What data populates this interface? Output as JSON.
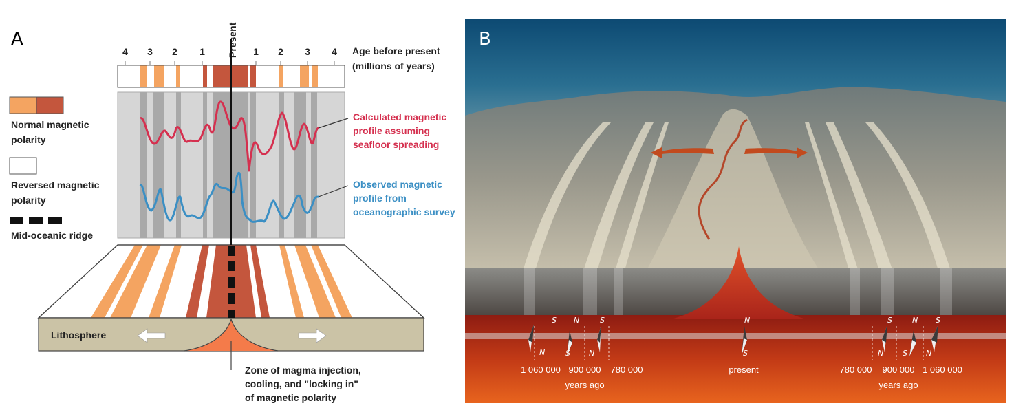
{
  "panel_a": {
    "letter": "A",
    "present_label": "Present",
    "age_ticks_left": [
      "4",
      "3",
      "2",
      "1"
    ],
    "age_ticks_right": [
      "1",
      "2",
      "3",
      "4"
    ],
    "age_title_line1": "Age before present",
    "age_title_line2": "(millions of years)",
    "legend": {
      "normal_line1": "Normal magnetic",
      "normal_line2": "polarity",
      "reversed_line1": "Reversed magnetic",
      "reversed_line2": "polarity",
      "ridge": "Mid-oceanic ridge"
    },
    "calculated_line1": "Calculated magnetic",
    "calculated_line2": "profile assuming",
    "calculated_line3": "seafloor spreading",
    "observed_line1": "Observed magnetic",
    "observed_line2": "profile from",
    "observed_line3": "oceanographic survey",
    "lithosphere": "Lithosphere",
    "zone_line1": "Zone of magma injection,",
    "zone_line2": "cooling, and \"locking in\"",
    "zone_line3": "of magnetic polarity",
    "colors": {
      "normal_light": "#f4a461",
      "normal_dark": "#c4563d",
      "calculated": "#d5304f",
      "observed": "#3b8fc4",
      "lithosphere": "#cbc3a6"
    }
  },
  "panel_b": {
    "letter": "B",
    "left_ages": [
      "1 060 000",
      "900 000",
      "780 000"
    ],
    "right_ages": [
      "780 000",
      "900 000",
      "1 060 000"
    ],
    "years_ago_left": "years ago",
    "years_ago_right": "years ago",
    "present": "present",
    "pole_n": "N",
    "pole_s": "S"
  }
}
